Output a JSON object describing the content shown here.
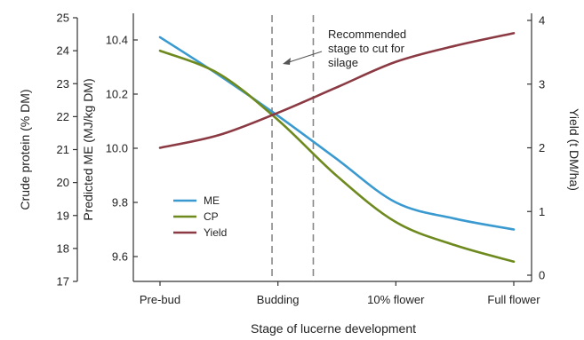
{
  "chart_data": {
    "type": "line",
    "categories": [
      "Pre-bud",
      "Budding",
      "10% flower",
      "Full flower"
    ],
    "xlabel": "Stage of lucerne development",
    "axes": {
      "crude_protein": {
        "label": "Crude protein (% DM)",
        "range": [
          17,
          25
        ],
        "ticks": [
          "17",
          "18",
          "19",
          "20",
          "21",
          "22",
          "23",
          "24",
          "25"
        ]
      },
      "me": {
        "label": "Predicted ME (MJ/kg DM)",
        "range": [
          9.5,
          10.5
        ],
        "ticks": [
          "9.6",
          "9.8",
          "10.0",
          "10.2",
          "10.4"
        ]
      },
      "yield": {
        "label": "Yield (t DM/ha)",
        "range": [
          0,
          4
        ],
        "ticks": [
          "0",
          "1",
          "2",
          "3",
          "4"
        ]
      }
    },
    "series": [
      {
        "name": "ME",
        "axis": "me",
        "color": "#3a9ad0",
        "x": [
          0,
          0.5,
          1,
          1.5,
          2,
          2.5,
          3
        ],
        "y": [
          10.41,
          10.27,
          10.12,
          9.96,
          9.8,
          9.74,
          9.7
        ]
      },
      {
        "name": "CP",
        "axis": "crude_protein",
        "color": "#6e8a1f",
        "x": [
          0,
          0.5,
          1,
          1.5,
          2,
          2.5,
          3
        ],
        "y": [
          24.0,
          23.3,
          21.9,
          20.2,
          18.8,
          18.1,
          17.6
        ]
      },
      {
        "name": "Yield",
        "axis": "yield",
        "color": "#8b3a43",
        "x": [
          0,
          0.5,
          1,
          1.5,
          2,
          2.5,
          3
        ],
        "y": [
          2.0,
          2.2,
          2.55,
          2.95,
          3.35,
          3.6,
          3.8
        ]
      }
    ],
    "legend": {
      "placement": "bottom-left"
    },
    "reference_lines": {
      "x": [
        0.95,
        1.3
      ],
      "style": "dashed",
      "color": "#888888"
    },
    "annotation": {
      "lines": [
        "Recommended",
        "stage to cut for",
        "silage"
      ],
      "points_to": "between dashed lines"
    },
    "grid": false
  }
}
